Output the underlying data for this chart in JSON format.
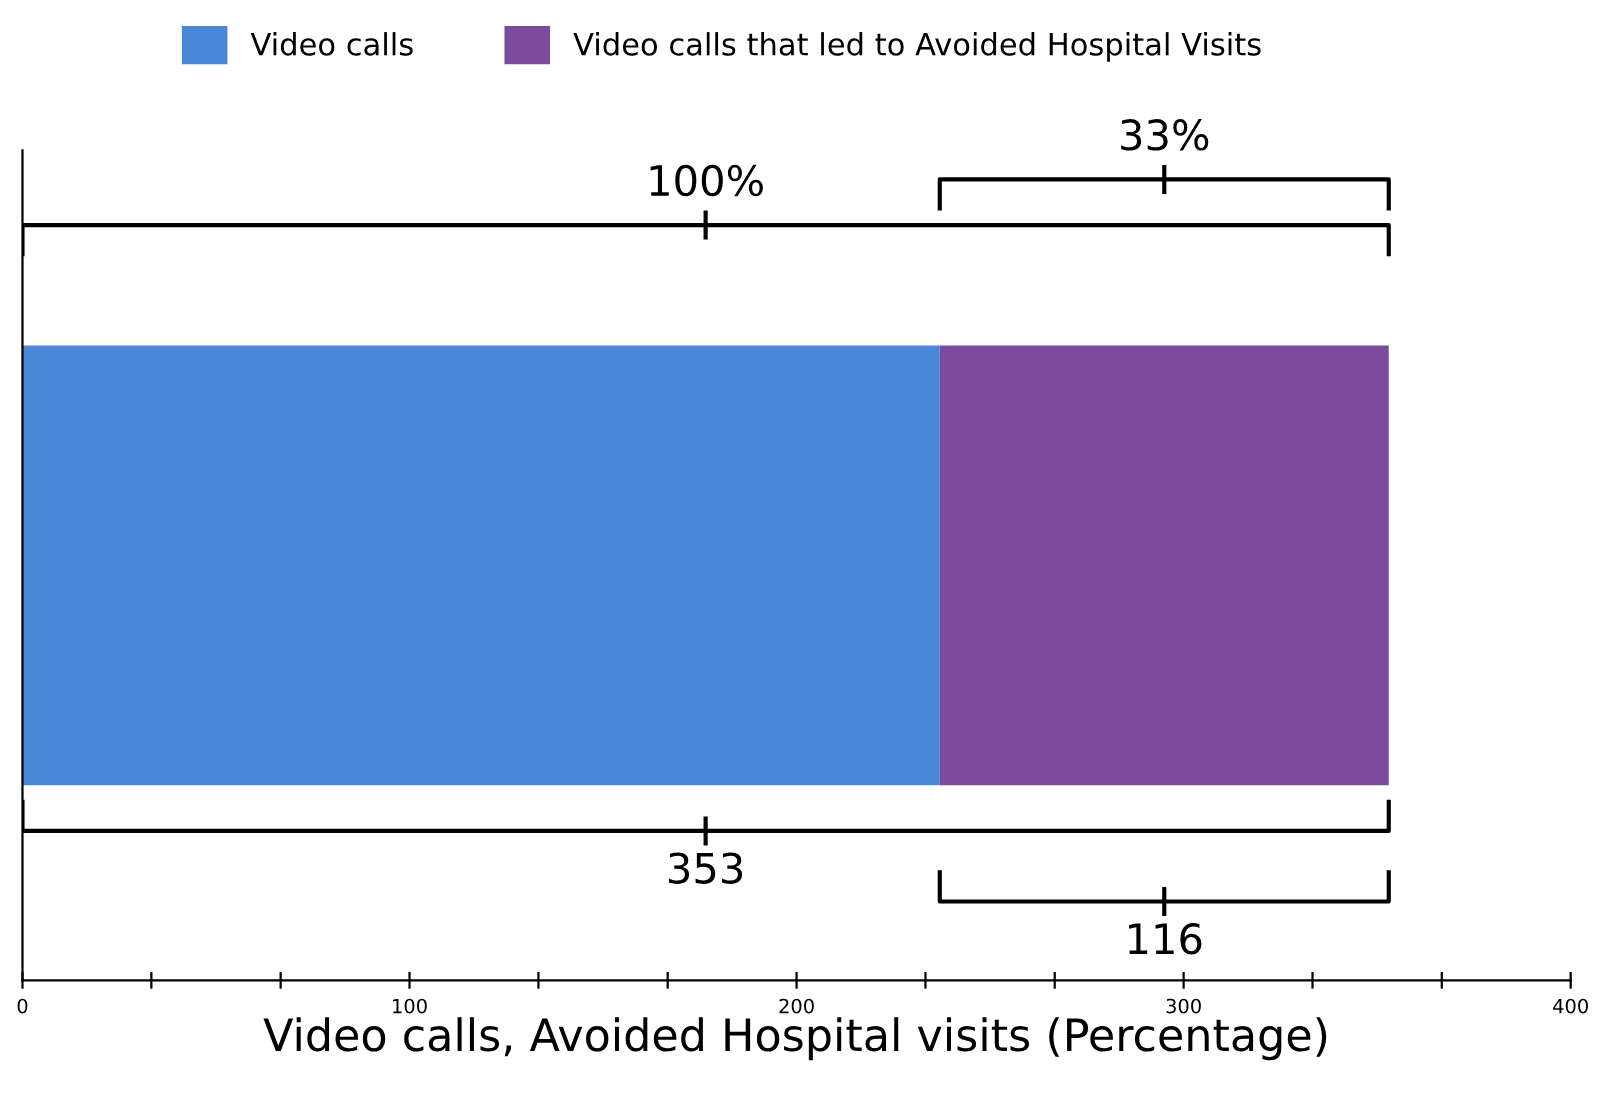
{
  "chart_data": {
    "type": "bar",
    "orientation": "horizontal",
    "stacked": true,
    "xlabel": "Video calls, Avoided Hospital visits (Percentage)",
    "categories": [
      null
    ],
    "series": [
      {
        "name": "Video calls",
        "color": "#4a87d6",
        "values": [
          237
        ]
      },
      {
        "name": "Video calls that led to Avoided Hospital Visits",
        "color": "#7b4c9e",
        "values": [
          116
        ]
      }
    ],
    "xlim": [
      0,
      400
    ],
    "xticks": [
      0,
      {
        "value": 33.3,
        "label": null
      },
      {
        "value": 66.7,
        "label": null
      },
      100,
      {
        "value": 133.3,
        "label": null
      },
      {
        "value": 166.7,
        "label": null
      },
      200,
      {
        "value": 233.3,
        "label": null
      },
      {
        "value": 266.7,
        "label": null
      },
      300,
      {
        "value": 333.3,
        "label": null
      },
      {
        "value": 366.7,
        "label": null
      },
      400
    ],
    "annotations": [
      "100%",
      "33%",
      "353",
      "116"
    ],
    "legend": "top",
    "grid": false
  }
}
